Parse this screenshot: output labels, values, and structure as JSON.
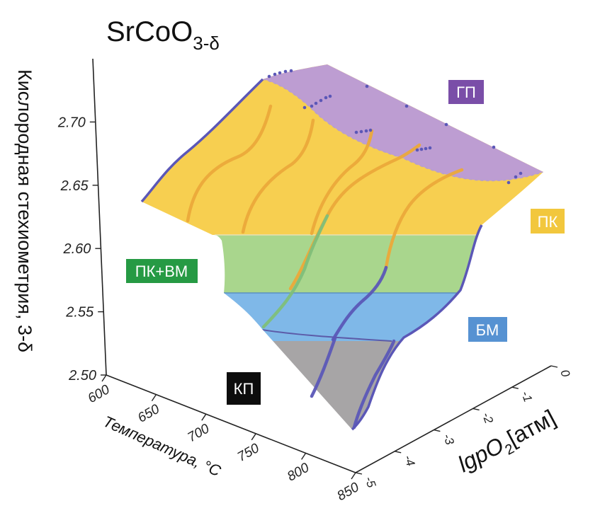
{
  "chart_data": {
    "type": "surface-3d",
    "title": "SrCoO",
    "title_subscript": "3-δ",
    "zlabel": "Кислородная стехиометрия,  3-δ",
    "xlabel": "Температура,  °C",
    "ylabel_main": "lgpO",
    "ylabel_sub": "2",
    "ylabel_unit": "[атм]",
    "temperature_ticks": [
      "600",
      "650",
      "700",
      "750",
      "800",
      "850"
    ],
    "pressure_ticks": [
      "0",
      "-1",
      "-2",
      "-3",
      "-4",
      "-5"
    ],
    "stoichiometry_ticks": [
      "2.50",
      "2.55",
      "2.60",
      "2.65",
      "2.70"
    ],
    "zlim": [
      2.5,
      2.72
    ],
    "xlim": [
      600,
      850
    ],
    "ylim": [
      -5,
      0
    ],
    "phases": [
      {
        "key": "gp",
        "label": "ГП",
        "color": "#9c6fbe",
        "range": [
          2.65,
          2.72
        ]
      },
      {
        "key": "pk",
        "label": "ПК",
        "color": "#f7cf50",
        "range": [
          2.6,
          2.7
        ]
      },
      {
        "key": "pkvm",
        "label": "ПК+ВМ",
        "color": "#2f9c4a",
        "range": [
          2.58,
          2.6
        ]
      },
      {
        "key": "bm",
        "label": "БМ",
        "color": "#5a9ad8",
        "range": [
          2.535,
          2.58
        ]
      },
      {
        "key": "kp",
        "label": "КП",
        "color": "#111111",
        "range": [
          2.5,
          2.535
        ]
      }
    ],
    "isotherms": [
      {
        "temperature": 600,
        "points": [
          [
            2.6945,
            0
          ],
          [
            2.6943,
            -1
          ],
          [
            2.694,
            -2
          ],
          [
            2.6935,
            -3
          ],
          [
            2.693,
            -4
          ],
          [
            2.692,
            -5
          ]
        ]
      },
      {
        "temperature": 650,
        "points": [
          [
            2.6675,
            0
          ],
          [
            2.6655,
            -1
          ],
          [
            2.663,
            -2
          ],
          [
            2.6595,
            -3
          ],
          [
            2.6555,
            -4
          ],
          [
            2.6505,
            -5
          ]
        ]
      },
      {
        "temperature": 700,
        "points": [
          [
            2.6475,
            0
          ],
          [
            2.6435,
            -1
          ],
          [
            2.638,
            -2
          ],
          [
            2.6315,
            -3
          ],
          [
            2.6235,
            -4
          ],
          [
            2.613,
            -5
          ]
        ]
      },
      {
        "temperature": 750,
        "points": [
          [
            2.629,
            0
          ],
          [
            2.623,
            -1
          ],
          [
            2.614,
            -2
          ],
          [
            2.5985,
            -3
          ],
          [
            2.5695,
            -4
          ],
          [
            2.5395,
            -5
          ]
        ]
      },
      {
        "temperature": 800,
        "points": [
          [
            2.6115,
            0
          ],
          [
            2.604,
            -1
          ],
          [
            2.592,
            -2
          ],
          [
            2.568,
            -3
          ],
          [
            2.54,
            -4
          ],
          [
            2.517,
            -5
          ]
        ]
      },
      {
        "temperature": 850,
        "points": [
          [
            2.593,
            0
          ],
          [
            2.579,
            -1
          ],
          [
            2.558,
            -2
          ],
          [
            2.5395,
            -3
          ],
          [
            2.5185,
            -4
          ],
          [
            2.498,
            -5
          ]
        ]
      }
    ]
  }
}
